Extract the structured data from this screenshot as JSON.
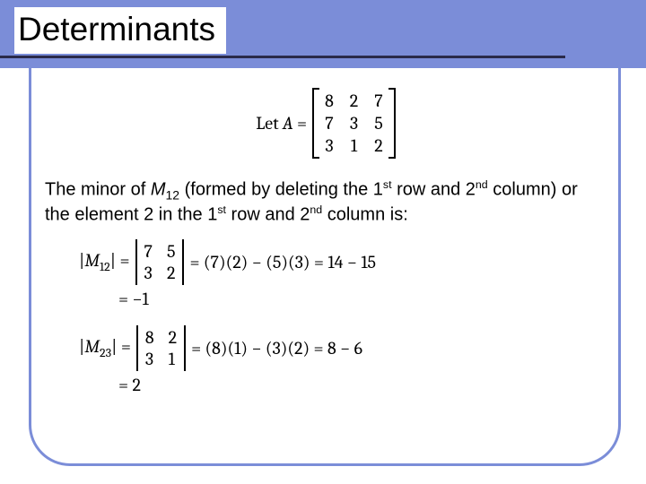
{
  "title": "Determinants",
  "let_prefix": "Let",
  "let_var": "A",
  "eq": "=",
  "matrix": {
    "rows": [
      [
        "8",
        "2",
        "7"
      ],
      [
        "7",
        "3",
        "5"
      ],
      [
        "3",
        "1",
        "2"
      ]
    ]
  },
  "body": {
    "p1a": "The minor of ",
    "mvar": "M",
    "msub": "12",
    "p1b": " (formed by deleting the 1",
    "sup_st": "st",
    "p1c": " row and 2",
    "sup_nd": "nd",
    "p1d": " column) or the element 2 in the 1",
    "p1e": " row and 2",
    "p1f": " column is:"
  },
  "eq1": {
    "lhs_M": "M",
    "lhs_sub": "12",
    "det": [
      [
        "7",
        "5"
      ],
      [
        "3",
        "2"
      ]
    ],
    "rhs": "= (7)(2) − (5)(3) = 14 − 15",
    "result": "= −1"
  },
  "eq2": {
    "lhs_M": "M",
    "lhs_sub": "23",
    "det": [
      [
        "8",
        "2"
      ],
      [
        "3",
        "1"
      ]
    ],
    "rhs": "= (8)(1) − (3)(2) = 8 − 6",
    "result": "= 2"
  }
}
